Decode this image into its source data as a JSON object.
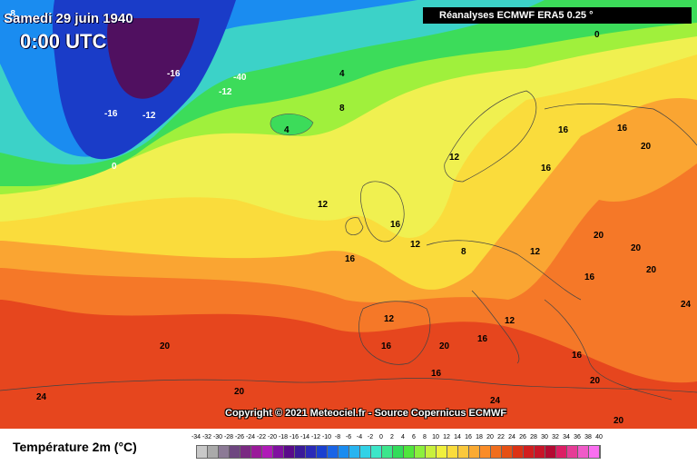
{
  "header": {
    "date": "Samedi 29 juin 1940",
    "time": "0:00 UTC",
    "source": "Réanalyses ECMWF ERA5 0.25 °"
  },
  "footer": {
    "copyright": "Copyright © 2021 Meteociel.fr - Source Copernicus ECMWF"
  },
  "legend": {
    "title": "Température 2m (°C)",
    "ticks": [
      "-34",
      "-32",
      "-30",
      "-28",
      "-26",
      "-24",
      "-22",
      "-20",
      "-18",
      "-16",
      "-14",
      "-12",
      "-10",
      "-8",
      "-6",
      "-4",
      "-2",
      "0",
      "2",
      "4",
      "6",
      "8",
      "10",
      "12",
      "14",
      "16",
      "18",
      "20",
      "22",
      "24",
      "26",
      "28",
      "30",
      "32",
      "34",
      "36",
      "38",
      "40"
    ],
    "colors": [
      "#c8c8c8",
      "#aaaaaa",
      "#8c7a96",
      "#6e4680",
      "#7a2a82",
      "#9a1a9a",
      "#b01ab8",
      "#8010a0",
      "#5a0a8a",
      "#3a1a9a",
      "#2a2ab8",
      "#1a40d0",
      "#1a64e6",
      "#1a8cf0",
      "#28b4f0",
      "#32d2e6",
      "#3ce6c8",
      "#3ce68c",
      "#32dc5a",
      "#50e63c",
      "#8cf03c",
      "#c8f03c",
      "#f0f03c",
      "#fadc3c",
      "#fac83c",
      "#faaa32",
      "#fa8c28",
      "#f06e1e",
      "#e65014",
      "#dc3214",
      "#d21e1e",
      "#c81428",
      "#b40a32",
      "#dc1e64",
      "#e63c96",
      "#f05ac8",
      "#fa6ef0"
    ]
  },
  "colors": {
    "deep_cold": "#501060",
    "very_cold": "#1a3cc8",
    "cold": "#1a8cf0",
    "cool": "#3cd2c8",
    "mild": "#3cdc5a",
    "fresh": "#a0f03c",
    "pale": "#f0f050",
    "yellow": "#fadc3c",
    "orange": "#faa532",
    "warm": "#f57828",
    "hot": "#e6461e"
  },
  "contour_labels": [
    {
      "t": "0",
      "c": "#000"
    },
    {
      "t": "-8",
      "c": "#fff"
    },
    {
      "t": "-16",
      "c": "#fff"
    },
    {
      "t": "-12",
      "c": "#fff"
    },
    {
      "t": "-40",
      "c": "#fff"
    },
    {
      "t": "-16",
      "c": "#fff"
    },
    {
      "t": "-12",
      "c": "#fff"
    },
    {
      "t": "0",
      "c": "#fff"
    },
    {
      "t": "4",
      "c": "#000"
    },
    {
      "t": "8",
      "c": "#000"
    },
    {
      "t": "4",
      "c": "#000"
    },
    {
      "t": "12",
      "c": "#000"
    },
    {
      "t": "16",
      "c": "#000"
    },
    {
      "t": "16",
      "c": "#000"
    },
    {
      "t": "12",
      "c": "#000"
    },
    {
      "t": "12",
      "c": "#000"
    },
    {
      "t": "8",
      "c": "#000"
    },
    {
      "t": "16",
      "c": "#000"
    },
    {
      "t": "20",
      "c": "#000"
    },
    {
      "t": "20",
      "c": "#000"
    },
    {
      "t": "20",
      "c": "#000"
    },
    {
      "t": "24",
      "c": "#000"
    },
    {
      "t": "20",
      "c": "#000"
    },
    {
      "t": "16",
      "c": "#000"
    },
    {
      "t": "12",
      "c": "#000"
    },
    {
      "t": "16",
      "c": "#000"
    },
    {
      "t": "16",
      "c": "#000"
    },
    {
      "t": "20",
      "c": "#000"
    },
    {
      "t": "24",
      "c": "#000"
    },
    {
      "t": "20",
      "c": "#000"
    },
    {
      "t": "12",
      "c": "#000"
    },
    {
      "t": "16",
      "c": "#000"
    },
    {
      "t": "20",
      "c": "#000"
    },
    {
      "t": "16",
      "c": "#000"
    },
    {
      "t": "24",
      "c": "#000"
    },
    {
      "t": "12",
      "c": "#000"
    },
    {
      "t": "16",
      "c": "#000"
    },
    {
      "t": "20",
      "c": "#000"
    },
    {
      "t": "16",
      "c": "#000"
    },
    {
      "t": "20",
      "c": "#000"
    }
  ]
}
